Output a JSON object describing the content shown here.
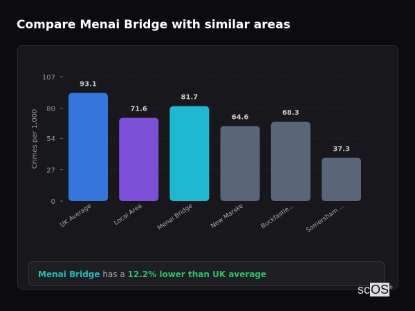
{
  "title": "Compare Menai Bridge with similar areas",
  "chart_data": {
    "type": "bar",
    "categories": [
      "UK Average",
      "Local Area",
      "Menai Bridge",
      "New Marske",
      "Buckfastle...",
      "Somersham ..."
    ],
    "values": [
      93.1,
      71.6,
      81.7,
      64.6,
      68.3,
      37.3
    ],
    "value_labels": [
      "93.1",
      "71.6",
      "81.7",
      "64.6",
      "68.3",
      "37.3"
    ],
    "colors": [
      "#3575dc",
      "#7b4fd6",
      "#1fb8d0",
      "#5a6578",
      "#5a6578",
      "#5a6578"
    ],
    "ylabel": "Crimes per 1,000",
    "xlabel": "",
    "ylim": [
      0,
      107
    ],
    "yticks": [
      0,
      27,
      54,
      80,
      107
    ],
    "grid": true
  },
  "summary": {
    "area": "Menai Bridge",
    "middle": " has a ",
    "result": "12.2% lower than UK average"
  },
  "logo": {
    "text1": "sc",
    "text2": "OS",
    "mark": "®"
  }
}
